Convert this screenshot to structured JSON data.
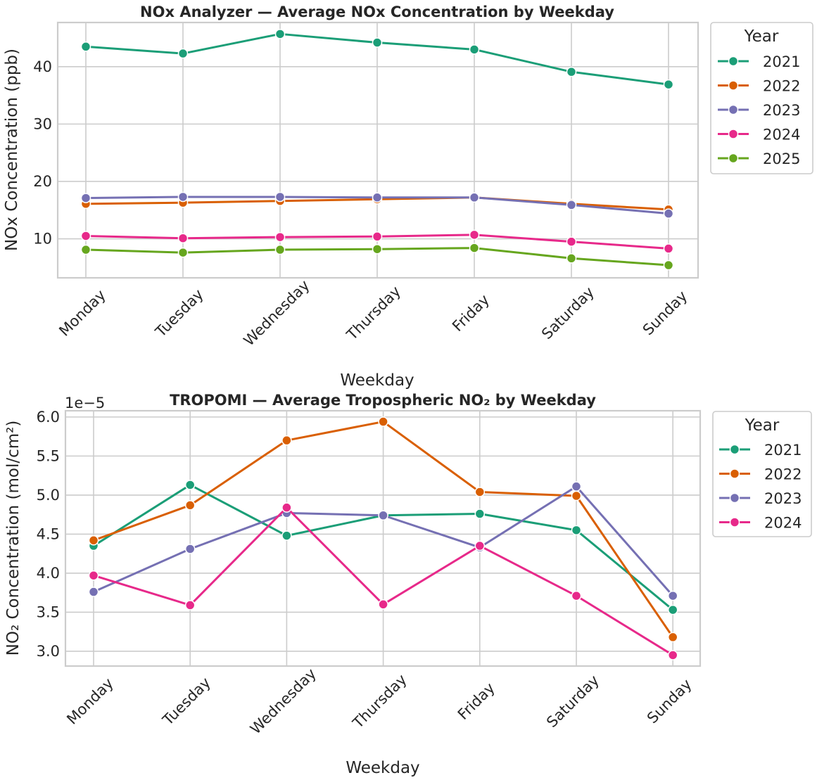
{
  "colors": {
    "2021": "#1b9e77",
    "2022": "#d95f02",
    "2023": "#7570b3",
    "2024": "#e7298a",
    "2025": "#66a61e",
    "grid": "#cccccc",
    "text": "#262626"
  },
  "chart_data": [
    {
      "type": "line",
      "title": "NOx Analyzer — Average NOx Concentration by Weekday",
      "xlabel": "Weekday",
      "ylabel": "NOx Concentration (ppb)",
      "categories": [
        "Monday",
        "Tuesday",
        "Wednesday",
        "Thursday",
        "Friday",
        "Saturday",
        "Sunday"
      ],
      "ylim": [
        3.2,
        47.7
      ],
      "yticks": [
        10,
        20,
        30,
        40
      ],
      "grid": true,
      "legend_title": "Year",
      "legend_position": "outside-top-right",
      "series": [
        {
          "name": "2021",
          "values": [
            43.5,
            42.3,
            45.7,
            44.2,
            43.0,
            39.1,
            36.9
          ]
        },
        {
          "name": "2022",
          "values": [
            16.1,
            16.3,
            16.6,
            16.9,
            17.2,
            16.1,
            15.1
          ]
        },
        {
          "name": "2023",
          "values": [
            17.1,
            17.3,
            17.3,
            17.2,
            17.2,
            15.9,
            14.4
          ]
        },
        {
          "name": "2024",
          "values": [
            10.5,
            10.1,
            10.3,
            10.4,
            10.7,
            9.5,
            8.3
          ]
        },
        {
          "name": "2025",
          "values": [
            8.1,
            7.6,
            8.1,
            8.2,
            8.4,
            6.6,
            5.4
          ]
        }
      ]
    },
    {
      "type": "line",
      "title": "TROPOMI — Average Tropospheric NO₂ by Weekday",
      "xlabel": "Weekday",
      "ylabel": "NO₂ Concentration (mol/cm²)",
      "offset_label": "1e−5",
      "categories": [
        "Monday",
        "Tuesday",
        "Wednesday",
        "Thursday",
        "Friday",
        "Saturday",
        "Sunday"
      ],
      "ylim": [
        2.81,
        6.08
      ],
      "yticks": [
        "3.0",
        "3.5",
        "4.0",
        "4.5",
        "5.0",
        "5.5",
        "6.0"
      ],
      "grid": true,
      "legend_title": "Year",
      "legend_position": "outside-top-right",
      "series": [
        {
          "name": "2021",
          "values": [
            4.35,
            5.13,
            4.48,
            4.74,
            4.76,
            4.55,
            3.53
          ]
        },
        {
          "name": "2022",
          "values": [
            4.42,
            4.87,
            5.7,
            5.94,
            5.04,
            4.99,
            3.18
          ]
        },
        {
          "name": "2023",
          "values": [
            3.76,
            4.31,
            4.77,
            4.74,
            4.33,
            5.11,
            3.71
          ]
        },
        {
          "name": "2024",
          "values": [
            3.97,
            3.59,
            4.84,
            3.6,
            4.35,
            3.71,
            2.95
          ]
        }
      ]
    }
  ]
}
